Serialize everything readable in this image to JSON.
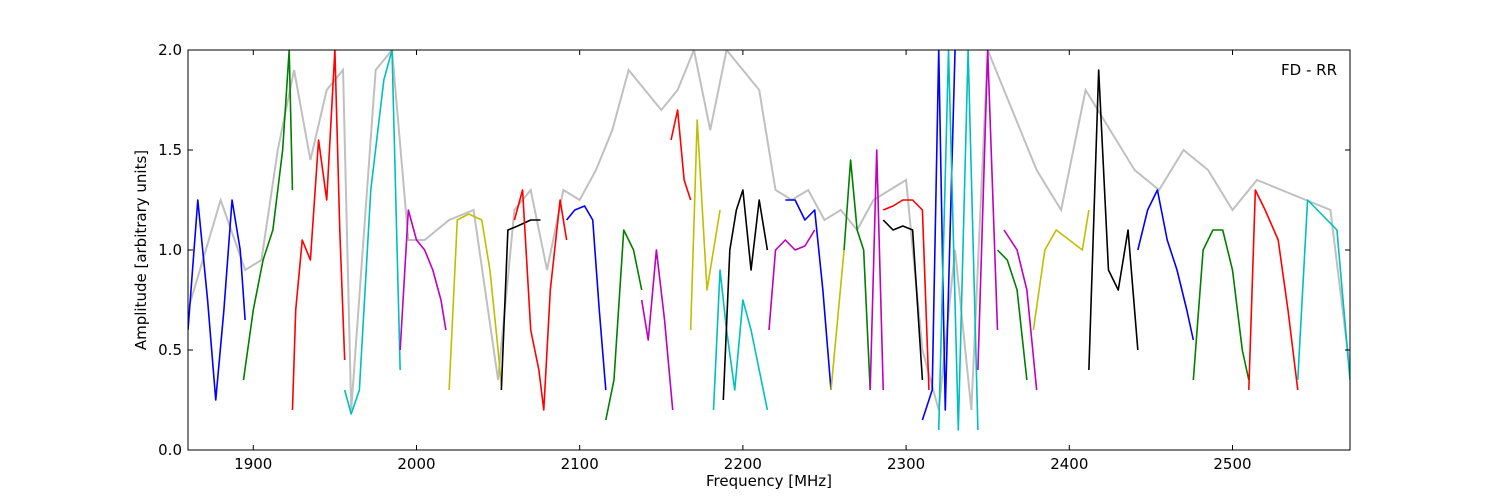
{
  "chart_data": {
    "type": "line",
    "title": "",
    "annotation": "FD - RR",
    "xlabel": "Frequency [MHz]",
    "ylabel": "Amplitude [arbitrary units]",
    "xlim": [
      1860,
      2572
    ],
    "ylim": [
      0.0,
      2.0
    ],
    "xticks": [
      1900,
      2000,
      2100,
      2200,
      2300,
      2400,
      2500
    ],
    "xtick_labels": [
      "1900",
      "2000",
      "2100",
      "2200",
      "2300",
      "2400",
      "2500"
    ],
    "yticks": [
      0.0,
      0.5,
      1.0,
      1.5,
      2.0
    ],
    "ytick_labels": [
      "0.0",
      "0.5",
      "1.0",
      "1.5",
      "2.0"
    ],
    "grid": false,
    "colors": {
      "background_envelope": "#c0c0c0",
      "blue": "#0000ff",
      "green": "#007f00",
      "red": "#ff0000",
      "cyan": "#00bfbf",
      "magenta": "#bf00bf",
      "yellow": "#bfbf00",
      "black": "#000000"
    },
    "envelope": {
      "x": [
        1860,
        1880,
        1895,
        1905,
        1915,
        1925,
        1935,
        1945,
        1955,
        1960,
        1975,
        1985,
        1995,
        2005,
        2020,
        2035,
        2050,
        2060,
        2070,
        2080,
        2090,
        2100,
        2110,
        2120,
        2130,
        2140,
        2150,
        2160,
        2170,
        2180,
        2190,
        2200,
        2210,
        2220,
        2230,
        2240,
        2250,
        2260,
        2270,
        2280,
        2290,
        2300,
        2310,
        2320,
        2330,
        2340,
        2350,
        2365,
        2380,
        2395,
        2410,
        2425,
        2440,
        2455,
        2470,
        2485,
        2500,
        2515,
        2530,
        2545,
        2560,
        2572
      ],
      "y": [
        0.7,
        1.25,
        0.9,
        0.95,
        1.5,
        1.9,
        1.45,
        1.8,
        1.9,
        0.2,
        1.9,
        2.0,
        1.05,
        1.05,
        1.15,
        1.2,
        0.35,
        1.2,
        1.3,
        0.9,
        1.3,
        1.25,
        1.4,
        1.6,
        1.9,
        1.8,
        1.7,
        1.8,
        2.0,
        1.6,
        2.0,
        1.9,
        1.8,
        1.3,
        1.25,
        1.3,
        1.15,
        1.2,
        1.1,
        1.25,
        1.3,
        1.35,
        0.5,
        0.2,
        1.0,
        0.2,
        2.0,
        1.7,
        1.4,
        1.2,
        1.8,
        1.6,
        1.4,
        1.3,
        1.5,
        1.4,
        1.2,
        1.35,
        1.3,
        1.25,
        1.2,
        0.4
      ]
    },
    "series": [
      {
        "color": "blue",
        "x": [
          1860,
          1866,
          1872,
          1877,
          1882,
          1887,
          1892,
          1895
        ],
        "y": [
          0.6,
          1.25,
          0.75,
          0.25,
          0.7,
          1.25,
          1.0,
          0.65
        ]
      },
      {
        "color": "green",
        "x": [
          1894,
          1900,
          1906,
          1912,
          1918,
          1922,
          1924
        ],
        "y": [
          0.35,
          0.7,
          0.95,
          1.1,
          1.5,
          2.0,
          1.3
        ]
      },
      {
        "color": "red",
        "x": [
          1924,
          1926,
          1930,
          1935,
          1940,
          1945,
          1950,
          1953,
          1956
        ],
        "y": [
          0.2,
          0.7,
          1.05,
          0.95,
          1.55,
          1.25,
          2.0,
          1.1,
          0.45
        ]
      },
      {
        "color": "cyan",
        "x": [
          1956,
          1960,
          1965,
          1972,
          1980,
          1985,
          1990
        ],
        "y": [
          0.3,
          0.18,
          0.3,
          1.3,
          1.85,
          2.0,
          0.4
        ]
      },
      {
        "color": "magenta",
        "x": [
          1990,
          1995,
          2000,
          2005,
          2010,
          2015,
          2018
        ],
        "y": [
          0.5,
          1.2,
          1.05,
          1.0,
          0.9,
          0.75,
          0.6
        ]
      },
      {
        "color": "yellow",
        "x": [
          2020,
          2025,
          2032,
          2040,
          2045,
          2050,
          2052
        ],
        "y": [
          0.3,
          1.15,
          1.18,
          1.15,
          0.9,
          0.5,
          0.32
        ]
      },
      {
        "color": "black",
        "x": [
          2052,
          2056,
          2062,
          2070,
          2076
        ],
        "y": [
          0.3,
          1.1,
          1.12,
          1.15,
          1.15
        ]
      },
      {
        "color": "red",
        "x": [
          2060,
          2065,
          2070,
          2075,
          2078,
          2082,
          2088,
          2092
        ],
        "y": [
          1.15,
          1.3,
          0.6,
          0.4,
          0.2,
          0.8,
          1.25,
          1.05
        ]
      },
      {
        "color": "blue",
        "x": [
          2092,
          2097,
          2103,
          2108,
          2112,
          2116
        ],
        "y": [
          1.15,
          1.2,
          1.22,
          1.15,
          0.7,
          0.3
        ]
      },
      {
        "color": "green",
        "x": [
          2116,
          2121,
          2127,
          2133,
          2138
        ],
        "y": [
          0.15,
          0.35,
          1.1,
          1.0,
          0.8
        ]
      },
      {
        "color": "magenta",
        "x": [
          2138,
          2142,
          2147,
          2152,
          2157
        ],
        "y": [
          0.75,
          0.55,
          1.0,
          0.65,
          0.2
        ]
      },
      {
        "color": "red",
        "x": [
          2156,
          2160,
          2164,
          2168
        ],
        "y": [
          1.55,
          1.7,
          1.35,
          1.25
        ]
      },
      {
        "color": "yellow",
        "x": [
          2168,
          2172,
          2178,
          2182,
          2186
        ],
        "y": [
          0.6,
          1.65,
          0.8,
          1.0,
          1.2
        ]
      },
      {
        "color": "cyan",
        "x": [
          2182,
          2186,
          2190,
          2195,
          2200,
          2205,
          2210,
          2215
        ],
        "y": [
          0.2,
          0.9,
          0.6,
          0.3,
          0.75,
          0.6,
          0.4,
          0.2
        ]
      },
      {
        "color": "black",
        "x": [
          2188,
          2192,
          2196,
          2200,
          2205,
          2210,
          2215
        ],
        "y": [
          0.25,
          1.0,
          1.2,
          1.3,
          0.9,
          1.25,
          1.0
        ]
      },
      {
        "color": "magenta",
        "x": [
          2216,
          2220,
          2226,
          2232,
          2238,
          2244
        ],
        "y": [
          0.6,
          1.0,
          1.05,
          1.0,
          1.02,
          1.1
        ]
      },
      {
        "color": "blue",
        "x": [
          2226,
          2232,
          2238,
          2244,
          2249,
          2254
        ],
        "y": [
          1.25,
          1.25,
          1.15,
          1.2,
          0.8,
          0.3
        ]
      },
      {
        "color": "yellow",
        "x": [
          2254,
          2258,
          2262
        ],
        "y": [
          0.3,
          0.65,
          1.0
        ]
      },
      {
        "color": "green",
        "x": [
          2262,
          2266,
          2270,
          2274,
          2278
        ],
        "y": [
          1.0,
          1.45,
          1.1,
          1.0,
          0.3
        ]
      },
      {
        "color": "magenta",
        "x": [
          2278,
          2282,
          2286
        ],
        "y": [
          0.3,
          1.5,
          0.3
        ]
      },
      {
        "color": "black",
        "x": [
          2286,
          2292,
          2298,
          2304,
          2310
        ],
        "y": [
          1.15,
          1.1,
          1.12,
          1.1,
          0.35
        ]
      },
      {
        "color": "red",
        "x": [
          2286,
          2292,
          2298,
          2304,
          2310,
          2314
        ],
        "y": [
          1.2,
          1.22,
          1.25,
          1.25,
          1.2,
          0.3
        ]
      },
      {
        "color": "blue",
        "x": [
          2310,
          2316,
          2320,
          2324,
          2330
        ],
        "y": [
          0.15,
          0.3,
          2.0,
          0.2,
          2.0
        ]
      },
      {
        "color": "cyan",
        "x": [
          2320,
          2326,
          2332,
          2338,
          2344
        ],
        "y": [
          0.1,
          2.0,
          0.1,
          2.0,
          0.1
        ]
      },
      {
        "color": "magenta",
        "x": [
          2344,
          2350,
          2356
        ],
        "y": [
          0.4,
          2.0,
          0.6
        ]
      },
      {
        "color": "green",
        "x": [
          2356,
          2362,
          2368,
          2374
        ],
        "y": [
          1.0,
          0.95,
          0.8,
          0.35
        ]
      },
      {
        "color": "magenta",
        "x": [
          2360,
          2368,
          2374,
          2380
        ],
        "y": [
          1.1,
          1.0,
          0.8,
          0.3
        ]
      },
      {
        "color": "yellow",
        "x": [
          2378,
          2385,
          2392,
          2400,
          2408,
          2412
        ],
        "y": [
          0.6,
          1.0,
          1.1,
          1.05,
          1.0,
          1.2
        ]
      },
      {
        "color": "black",
        "x": [
          2412,
          2418,
          2424,
          2430,
          2436,
          2442
        ],
        "y": [
          0.4,
          1.9,
          0.9,
          0.8,
          1.1,
          0.5
        ]
      },
      {
        "color": "blue",
        "x": [
          2442,
          2448,
          2454,
          2460,
          2466,
          2472,
          2476
        ],
        "y": [
          1.0,
          1.2,
          1.3,
          1.05,
          0.9,
          0.7,
          0.55
        ]
      },
      {
        "color": "green",
        "x": [
          2476,
          2482,
          2488,
          2494,
          2500,
          2506,
          2510
        ],
        "y": [
          0.35,
          1.0,
          1.1,
          1.1,
          0.9,
          0.5,
          0.35
        ]
      },
      {
        "color": "red",
        "x": [
          2510,
          2514,
          2520,
          2528,
          2534,
          2540
        ],
        "y": [
          0.3,
          1.3,
          1.2,
          1.05,
          0.7,
          0.3
        ]
      },
      {
        "color": "cyan",
        "x": [
          2540,
          2546,
          2552,
          2558,
          2564,
          2572
        ],
        "y": [
          0.35,
          1.25,
          1.2,
          1.15,
          1.1,
          0.35
        ]
      }
    ]
  }
}
